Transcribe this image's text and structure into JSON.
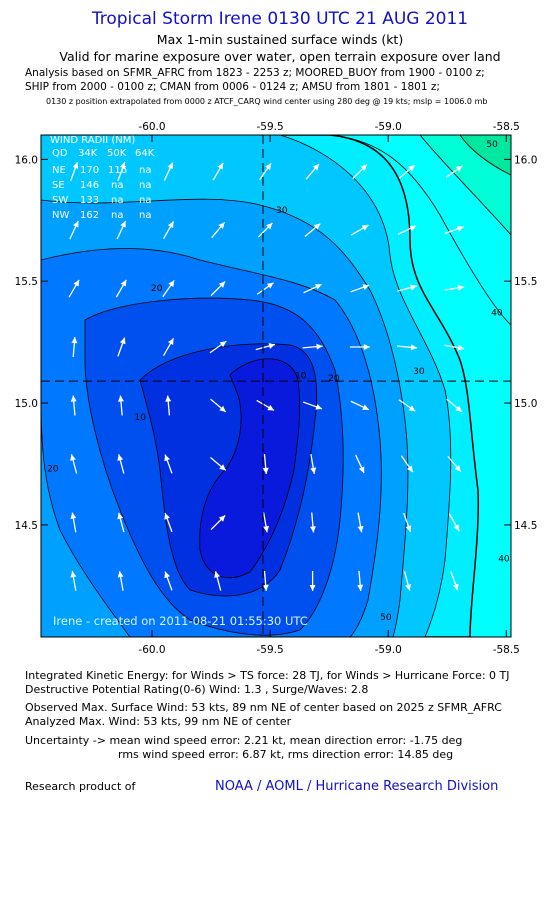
{
  "header": {
    "title": "Tropical Storm Irene 0130 UTC 21 AUG 2011",
    "subtitle1": "Max 1-min sustained surface winds (kt)",
    "subtitle2": "Valid for marine exposure over water, open terrain exposure over land",
    "analysis": [
      "Analysis based on SFMR_AFRC from 1823 - 2253 z; MOORED_BUOY from 1900 - 0100 z;",
      "SHIP from 2000 - 0100 z; CMAN from 0006 - 0124 z; AMSU from 1801 - 1801 z;",
      "0130 z position extrapolated from 0000 z ATCF_CARQ wind center using 280 deg @ 19 kts; mslp = 1006.0 mb"
    ]
  },
  "wind_radii": {
    "title": "WIND RADII (NM)",
    "header": [
      "QD",
      "34K",
      "50K",
      "64K"
    ],
    "rows": [
      [
        "NE",
        "170",
        "116",
        "na"
      ],
      [
        "SE",
        "146",
        "na",
        "na"
      ],
      [
        "SW",
        "133",
        "na",
        "na"
      ],
      [
        "NW",
        "162",
        "na",
        "na"
      ]
    ]
  },
  "credit": "Irene - created on 2011-08-21 01:55:30 UTC",
  "chart_data": {
    "type": "contour",
    "title": "Max 1-min sustained surface winds (kt)",
    "xlim": [
      -60.47,
      -58.48
    ],
    "ylim": [
      14.04,
      16.1
    ],
    "x_ticks": [
      -60.0,
      -59.5,
      -59.0,
      -58.5
    ],
    "x_tick_labels": [
      "-60.0",
      "-59.5",
      "-59.0",
      "-58.5"
    ],
    "y_ticks": [
      14.5,
      15.0,
      15.5,
      16.0
    ],
    "y_tick_labels": [
      "14.5",
      "15.0",
      "15.5",
      "16.0"
    ],
    "center": {
      "lon": -59.53,
      "lat": 15.09
    },
    "contour_levels": [
      10,
      15,
      20,
      25,
      30,
      35,
      40,
      45,
      50
    ],
    "contour_labels": [
      {
        "text": "10",
        "lon": -60.05,
        "lat": 14.93
      },
      {
        "text": "20",
        "lon": -59.98,
        "lat": 15.46
      },
      {
        "text": "30",
        "lon": -59.45,
        "lat": 15.78
      },
      {
        "text": "10",
        "lon": -59.37,
        "lat": 15.1
      },
      {
        "text": "20",
        "lon": -59.23,
        "lat": 15.09
      },
      {
        "text": "30",
        "lon": -58.87,
        "lat": 15.12
      },
      {
        "text": "40",
        "lon": -58.54,
        "lat": 15.36
      },
      {
        "text": "50",
        "lon": -58.56,
        "lat": 16.05
      },
      {
        "text": "20",
        "lon": -60.42,
        "lat": 14.72
      },
      {
        "text": "50",
        "lon": -59.01,
        "lat": 14.11
      },
      {
        "text": "40",
        "lon": -58.51,
        "lat": 14.35
      }
    ],
    "vectors": [
      {
        "lon": -60.33,
        "lat": 15.95,
        "dir": 20
      },
      {
        "lon": -60.13,
        "lat": 15.95,
        "dir": 20
      },
      {
        "lon": -59.93,
        "lat": 15.95,
        "dir": 25
      },
      {
        "lon": -59.72,
        "lat": 15.95,
        "dir": 30
      },
      {
        "lon": -59.52,
        "lat": 15.95,
        "dir": 35
      },
      {
        "lon": -59.32,
        "lat": 15.95,
        "dir": 40
      },
      {
        "lon": -59.12,
        "lat": 15.95,
        "dir": 45
      },
      {
        "lon": -58.92,
        "lat": 15.95,
        "dir": 50
      },
      {
        "lon": -58.72,
        "lat": 15.95,
        "dir": 55
      },
      {
        "lon": -60.33,
        "lat": 15.71,
        "dir": 25
      },
      {
        "lon": -60.13,
        "lat": 15.71,
        "dir": 25
      },
      {
        "lon": -59.93,
        "lat": 15.71,
        "dir": 30
      },
      {
        "lon": -59.72,
        "lat": 15.71,
        "dir": 40
      },
      {
        "lon": -59.52,
        "lat": 15.71,
        "dir": 45
      },
      {
        "lon": -59.32,
        "lat": 15.71,
        "dir": 50
      },
      {
        "lon": -59.12,
        "lat": 15.71,
        "dir": 60
      },
      {
        "lon": -58.92,
        "lat": 15.71,
        "dir": 65
      },
      {
        "lon": -58.72,
        "lat": 15.71,
        "dir": 70
      },
      {
        "lon": -60.33,
        "lat": 15.47,
        "dir": 30
      },
      {
        "lon": -60.13,
        "lat": 15.47,
        "dir": 30
      },
      {
        "lon": -59.93,
        "lat": 15.47,
        "dir": 35
      },
      {
        "lon": -59.72,
        "lat": 15.47,
        "dir": 45
      },
      {
        "lon": -59.52,
        "lat": 15.47,
        "dir": 55
      },
      {
        "lon": -59.32,
        "lat": 15.47,
        "dir": 65
      },
      {
        "lon": -59.12,
        "lat": 15.47,
        "dir": 70
      },
      {
        "lon": -58.92,
        "lat": 15.47,
        "dir": 75
      },
      {
        "lon": -58.72,
        "lat": 15.47,
        "dir": 80
      },
      {
        "lon": -60.33,
        "lat": 15.23,
        "dir": 5
      },
      {
        "lon": -60.13,
        "lat": 15.23,
        "dir": 20
      },
      {
        "lon": -59.93,
        "lat": 15.23,
        "dir": 30
      },
      {
        "lon": -59.72,
        "lat": 15.23,
        "dir": 55
      },
      {
        "lon": -59.52,
        "lat": 15.23,
        "dir": 75
      },
      {
        "lon": -59.32,
        "lat": 15.23,
        "dir": 85
      },
      {
        "lon": -59.12,
        "lat": 15.23,
        "dir": 90
      },
      {
        "lon": -58.92,
        "lat": 15.23,
        "dir": 95
      },
      {
        "lon": -58.72,
        "lat": 15.23,
        "dir": 100
      },
      {
        "lon": -60.33,
        "lat": 14.99,
        "dir": -5
      },
      {
        "lon": -60.13,
        "lat": 14.99,
        "dir": -5
      },
      {
        "lon": -59.93,
        "lat": 14.99,
        "dir": -5
      },
      {
        "lon": -59.72,
        "lat": 14.99,
        "dir": 130
      },
      {
        "lon": -59.52,
        "lat": 14.99,
        "dir": 120
      },
      {
        "lon": -59.32,
        "lat": 14.99,
        "dir": 110
      },
      {
        "lon": -59.12,
        "lat": 14.99,
        "dir": 115
      },
      {
        "lon": -58.92,
        "lat": 14.99,
        "dir": 125
      },
      {
        "lon": -58.72,
        "lat": 14.99,
        "dir": 130
      },
      {
        "lon": -60.33,
        "lat": 14.75,
        "dir": -15
      },
      {
        "lon": -60.13,
        "lat": 14.75,
        "dir": -15
      },
      {
        "lon": -59.93,
        "lat": 14.75,
        "dir": -20
      },
      {
        "lon": -59.72,
        "lat": 14.75,
        "dir": 130
      },
      {
        "lon": -59.52,
        "lat": 14.75,
        "dir": 175
      },
      {
        "lon": -59.32,
        "lat": 14.75,
        "dir": 170
      },
      {
        "lon": -59.12,
        "lat": 14.75,
        "dir": 155
      },
      {
        "lon": -58.92,
        "lat": 14.75,
        "dir": 145
      },
      {
        "lon": -58.72,
        "lat": 14.75,
        "dir": 140
      },
      {
        "lon": -60.33,
        "lat": 14.51,
        "dir": -10
      },
      {
        "lon": -60.13,
        "lat": 14.51,
        "dir": -15
      },
      {
        "lon": -59.93,
        "lat": 14.51,
        "dir": -20
      },
      {
        "lon": -59.72,
        "lat": 14.51,
        "dir": 45
      },
      {
        "lon": -59.52,
        "lat": 14.51,
        "dir": 170
      },
      {
        "lon": -59.32,
        "lat": 14.51,
        "dir": 175
      },
      {
        "lon": -59.12,
        "lat": 14.51,
        "dir": 170
      },
      {
        "lon": -58.92,
        "lat": 14.51,
        "dir": 160
      },
      {
        "lon": -58.72,
        "lat": 14.51,
        "dir": 150
      },
      {
        "lon": -60.33,
        "lat": 14.27,
        "dir": -10
      },
      {
        "lon": -60.13,
        "lat": 14.27,
        "dir": -10
      },
      {
        "lon": -59.93,
        "lat": 14.27,
        "dir": -20
      },
      {
        "lon": -59.72,
        "lat": 14.27,
        "dir": -15
      },
      {
        "lon": -59.52,
        "lat": 14.27,
        "dir": 175
      },
      {
        "lon": -59.32,
        "lat": 14.27,
        "dir": 180
      },
      {
        "lon": -59.12,
        "lat": 14.27,
        "dir": 175
      },
      {
        "lon": -58.92,
        "lat": 14.27,
        "dir": 165
      },
      {
        "lon": -58.72,
        "lat": 14.27,
        "dir": 160
      }
    ]
  },
  "footer": {
    "ike": "Integrated Kinetic Energy:  for Winds > TS force: 28 TJ,  for Winds > Hurricane Force: 0 TJ",
    "dpr": "Destructive Potential Rating(0-6)   Wind: 1.3 , Surge/Waves: 2.8",
    "obs_max": "Observed Max. Surface Wind: 53 kts, 89 nm NE of center based on 2025 z SFMR_AFRC",
    "ana_max": "Analyzed Max. Wind: 53 kts, 99 nm NE of center",
    "unc1": "Uncertainty -> mean wind speed error: 2.21 kt,   mean direction error:  -1.75 deg",
    "unc2": "rms wind speed error: 6.87 kt,   rms direction error: 14.85 deg",
    "product_of": "Research product of",
    "org": "NOAA / AOML / Hurricane Research Division"
  }
}
